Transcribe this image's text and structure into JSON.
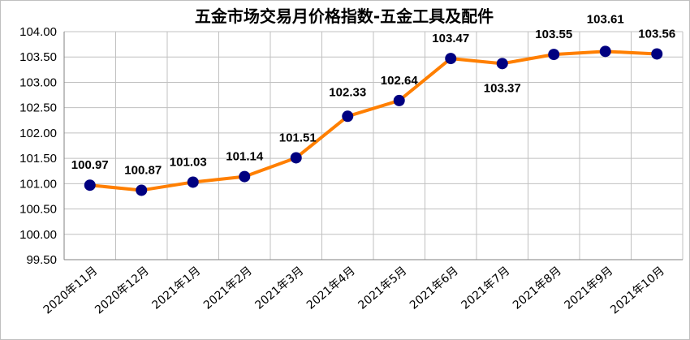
{
  "chart_data": {
    "type": "line",
    "title": "五金市场交易月价格指数-五金工具及配件",
    "xlabel": "",
    "ylabel": "",
    "categories": [
      "2020年11月",
      "2020年12月",
      "2021年1月",
      "2021年2月",
      "2021年3月",
      "2021年4月",
      "2021年5月",
      "2021年6月",
      "2021年7月",
      "2021年8月",
      "2021年9月",
      "2021年10月"
    ],
    "series": [
      {
        "values": [
          100.97,
          100.87,
          101.03,
          101.14,
          101.51,
          102.33,
          102.64,
          103.47,
          103.37,
          103.55,
          103.61,
          103.56
        ],
        "labels": [
          "100.97",
          "100.87",
          "101.03",
          "101.14",
          "101.51",
          "102.33",
          "102.64",
          "103.47",
          "103.37",
          "103.55",
          "103.61",
          "103.56"
        ]
      }
    ],
    "ylim": [
      99.5,
      104.0
    ],
    "yticks": [
      "104.00",
      "103.50",
      "103.00",
      "102.50",
      "102.00",
      "101.50",
      "101.00",
      "100.50",
      "100.00",
      "99.50"
    ],
    "grid": true,
    "legend": "none",
    "colors": {
      "line": "#ff7f00",
      "marker": "#000080",
      "grid": "#c0c0c0",
      "axis": "#808080"
    }
  }
}
